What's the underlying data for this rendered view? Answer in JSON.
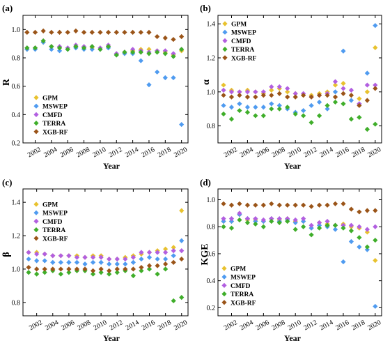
{
  "series_styles": [
    {
      "name": "GPM",
      "color": "#e8c22e"
    },
    {
      "name": "MSWEP",
      "color": "#4f9bf0"
    },
    {
      "name": "CMFD",
      "color": "#b25fe0"
    },
    {
      "name": "TERRA",
      "color": "#3fae2a"
    },
    {
      "name": "XGB-RF",
      "color": "#9a5418"
    }
  ],
  "chart_data": [
    {
      "panel": "(a)",
      "type": "scatter",
      "xlabel": "Year",
      "ylabel": "R",
      "xlim": [
        2000.5,
        2020.8
      ],
      "ylim": [
        0.2,
        1.1
      ],
      "yticks": [
        "0.2",
        "0.4",
        "0.6",
        "0.8",
        "1.0"
      ],
      "ytick_values": [
        0.2,
        0.4,
        0.6,
        0.8,
        1.0
      ],
      "xticks": [
        "2002",
        "2004",
        "2006",
        "2008",
        "2010",
        "2012",
        "2014",
        "2016",
        "2018",
        "2020"
      ],
      "xtick_values": [
        2002,
        2004,
        2006,
        2008,
        2010,
        2012,
        2014,
        2016,
        2018,
        2020
      ],
      "legend": "bottom-left",
      "x": [
        2001,
        2002,
        2003,
        2004,
        2005,
        2006,
        2007,
        2008,
        2009,
        2010,
        2011,
        2012,
        2013,
        2014,
        2015,
        2016,
        2017,
        2018,
        2019,
        2020
      ],
      "series": [
        {
          "name": "GPM",
          "values": [
            0.86,
            0.87,
            0.91,
            0.88,
            0.87,
            0.86,
            0.88,
            0.87,
            0.87,
            0.86,
            0.88,
            0.82,
            0.84,
            0.85,
            0.86,
            0.86,
            0.85,
            0.84,
            0.82,
            0.85
          ]
        },
        {
          "name": "MSWEP",
          "values": [
            0.86,
            0.86,
            0.91,
            0.86,
            0.85,
            0.86,
            0.87,
            0.86,
            0.86,
            0.86,
            0.87,
            0.82,
            0.83,
            0.83,
            0.78,
            0.61,
            0.7,
            0.66,
            0.66,
            0.33
          ]
        },
        {
          "name": "CMFD",
          "values": [
            0.87,
            0.87,
            0.92,
            0.88,
            0.88,
            0.87,
            0.89,
            0.88,
            0.88,
            0.87,
            0.89,
            0.83,
            0.84,
            0.86,
            0.85,
            0.84,
            0.85,
            0.85,
            0.83,
            0.86
          ]
        },
        {
          "name": "TERRA",
          "values": [
            0.87,
            0.87,
            0.92,
            0.88,
            0.87,
            0.86,
            0.88,
            0.87,
            0.88,
            0.86,
            0.88,
            0.82,
            0.84,
            0.84,
            0.84,
            0.83,
            0.84,
            0.83,
            0.81,
            0.86
          ]
        },
        {
          "name": "XGB-RF",
          "values": [
            0.98,
            0.98,
            0.99,
            0.98,
            0.98,
            0.98,
            0.99,
            0.98,
            0.98,
            0.98,
            0.98,
            0.98,
            0.98,
            0.98,
            0.98,
            0.98,
            0.95,
            0.94,
            0.93,
            0.95
          ]
        }
      ]
    },
    {
      "panel": "(b)",
      "type": "scatter",
      "xlabel": "Year",
      "ylabel": "α",
      "xlim": [
        2000.3,
        2020.8
      ],
      "ylim": [
        0.7,
        1.45
      ],
      "yticks": [
        "0.8",
        "1.0",
        "1.2",
        "1.4"
      ],
      "ytick_values": [
        0.8,
        1.0,
        1.2,
        1.4
      ],
      "xticks": [
        "2002",
        "2004",
        "2006",
        "2008",
        "2010",
        "2012",
        "2014",
        "2016",
        "2018",
        "2020"
      ],
      "xtick_values": [
        2002,
        2004,
        2006,
        2008,
        2010,
        2012,
        2014,
        2016,
        2018,
        2020
      ],
      "legend": "top-left",
      "x": [
        2001,
        2002,
        2003,
        2004,
        2005,
        2006,
        2007,
        2008,
        2009,
        2010,
        2011,
        2012,
        2013,
        2014,
        2015,
        2016,
        2017,
        2018,
        2019,
        2020
      ],
      "series": [
        {
          "name": "GPM",
          "values": [
            1.04,
            1.01,
            1.0,
            1.01,
            1.0,
            0.99,
            1.01,
            1.02,
            1.0,
            0.99,
            0.98,
            0.98,
            0.99,
            1.0,
            1.04,
            1.05,
            0.98,
            0.96,
            1.0,
            1.26
          ]
        },
        {
          "name": "MSWEP",
          "values": [
            0.92,
            0.91,
            0.93,
            0.91,
            0.91,
            0.91,
            0.93,
            0.92,
            0.9,
            0.88,
            0.89,
            0.92,
            0.94,
            0.9,
            1.0,
            1.24,
            0.95,
            0.93,
            1.11,
            1.39
          ]
        },
        {
          "name": "CMFD",
          "values": [
            1.01,
            1.0,
            1.0,
            1.0,
            1.0,
            1.0,
            1.03,
            1.03,
            1.02,
            0.99,
            0.99,
            0.97,
            0.98,
            0.99,
            1.06,
            1.02,
            1.01,
            0.93,
            1.04,
            1.04
          ]
        },
        {
          "name": "TERRA",
          "values": [
            0.87,
            0.84,
            0.89,
            0.88,
            0.86,
            0.86,
            0.9,
            0.9,
            0.91,
            0.87,
            0.86,
            0.82,
            0.86,
            0.92,
            0.94,
            0.93,
            0.84,
            0.85,
            0.78,
            0.81
          ]
        },
        {
          "name": "XGB-RF",
          "values": [
            0.98,
            0.97,
            0.98,
            0.97,
            0.97,
            0.98,
            0.98,
            0.99,
            0.97,
            0.97,
            0.98,
            0.97,
            0.98,
            0.98,
            0.97,
            0.99,
            0.98,
            0.92,
            0.95,
            1.02
          ]
        }
      ]
    },
    {
      "panel": "(c)",
      "type": "scatter",
      "xlabel": "Year",
      "ylabel": "β",
      "xlim": [
        2000.3,
        2020.8
      ],
      "ylim": [
        0.72,
        1.48
      ],
      "yticks": [
        "0.8",
        "1.0",
        "1.2",
        "1.4"
      ],
      "ytick_values": [
        0.8,
        1.0,
        1.2,
        1.4
      ],
      "xticks": [
        "2002",
        "2004",
        "2006",
        "2008",
        "2010",
        "2012",
        "2014",
        "2016",
        "2018",
        "2020"
      ],
      "xtick_values": [
        2002,
        2004,
        2006,
        2008,
        2010,
        2012,
        2014,
        2016,
        2018,
        2020
      ],
      "legend": "top-left",
      "x": [
        2001,
        2002,
        2003,
        2004,
        2005,
        2006,
        2007,
        2008,
        2009,
        2010,
        2011,
        2012,
        2013,
        2014,
        2015,
        2016,
        2017,
        2018,
        2019,
        2020
      ],
      "series": [
        {
          "name": "GPM",
          "values": [
            1.1,
            1.1,
            1.09,
            1.08,
            1.08,
            1.08,
            1.08,
            1.07,
            1.08,
            1.08,
            1.06,
            1.06,
            1.07,
            1.08,
            1.09,
            1.1,
            1.11,
            1.12,
            1.13,
            1.35
          ]
        },
        {
          "name": "MSWEP",
          "values": [
            1.06,
            1.05,
            1.05,
            1.04,
            1.04,
            1.04,
            1.04,
            1.03,
            1.04,
            1.04,
            1.03,
            1.03,
            1.03,
            1.04,
            1.06,
            1.07,
            1.06,
            1.06,
            1.08,
            1.17
          ]
        },
        {
          "name": "CMFD",
          "values": [
            1.1,
            1.09,
            1.09,
            1.08,
            1.08,
            1.08,
            1.07,
            1.07,
            1.07,
            1.07,
            1.06,
            1.06,
            1.06,
            1.07,
            1.1,
            1.1,
            1.1,
            1.1,
            1.11,
            1.11
          ]
        },
        {
          "name": "TERRA",
          "values": [
            0.98,
            0.97,
            0.98,
            0.99,
            0.97,
            0.98,
            0.99,
            0.99,
            0.97,
            0.98,
            0.97,
            0.98,
            0.99,
            0.96,
            0.99,
            1.0,
            0.97,
            1.0,
            0.81,
            0.83
          ]
        },
        {
          "name": "XGB-RF",
          "values": [
            1.01,
            1.0,
            1.0,
            1.0,
            1.0,
            1.0,
            1.0,
            1.0,
            0.99,
            1.0,
            0.99,
            1.0,
            1.0,
            1.0,
            1.01,
            1.02,
            1.02,
            1.03,
            1.04,
            1.06
          ]
        }
      ]
    },
    {
      "panel": "(d)",
      "type": "scatter",
      "xlabel": "Year",
      "ylabel": "KGE",
      "xlim": [
        2000.3,
        2020.8
      ],
      "ylim": [
        0.14,
        1.08
      ],
      "yticks": [
        "0.2",
        "0.4",
        "0.6",
        "0.8",
        "1.0"
      ],
      "ytick_values": [
        0.2,
        0.4,
        0.6,
        0.8,
        1.0
      ],
      "xticks": [
        "2002",
        "2004",
        "2006",
        "2008",
        "2010",
        "2012",
        "2014",
        "2016",
        "2018",
        "2020"
      ],
      "xtick_values": [
        2002,
        2004,
        2006,
        2008,
        2010,
        2012,
        2014,
        2016,
        2018,
        2020
      ],
      "legend": "bottom-left",
      "x": [
        2001,
        2002,
        2003,
        2004,
        2005,
        2006,
        2007,
        2008,
        2009,
        2010,
        2011,
        2012,
        2013,
        2014,
        2015,
        2016,
        2017,
        2018,
        2019,
        2020
      ],
      "series": [
        {
          "name": "GPM",
          "values": [
            0.84,
            0.84,
            0.89,
            0.85,
            0.85,
            0.84,
            0.86,
            0.85,
            0.86,
            0.84,
            0.84,
            0.79,
            0.83,
            0.82,
            0.81,
            0.82,
            0.8,
            0.79,
            0.76,
            0.55
          ]
        },
        {
          "name": "MSWEP",
          "values": [
            0.84,
            0.84,
            0.89,
            0.86,
            0.84,
            0.84,
            0.86,
            0.84,
            0.85,
            0.83,
            0.84,
            0.79,
            0.81,
            0.8,
            0.78,
            0.54,
            0.69,
            0.65,
            0.63,
            0.21
          ]
        },
        {
          "name": "CMFD",
          "values": [
            0.86,
            0.86,
            0.9,
            0.86,
            0.86,
            0.85,
            0.86,
            0.86,
            0.86,
            0.85,
            0.86,
            0.81,
            0.83,
            0.84,
            0.81,
            0.81,
            0.81,
            0.8,
            0.78,
            0.8
          ]
        },
        {
          "name": "TERRA",
          "values": [
            0.8,
            0.79,
            0.85,
            0.83,
            0.82,
            0.8,
            0.84,
            0.83,
            0.84,
            0.78,
            0.8,
            0.74,
            0.79,
            0.81,
            0.81,
            0.79,
            0.77,
            0.72,
            0.65,
            0.7
          ]
        },
        {
          "name": "XGB-RF",
          "values": [
            0.97,
            0.96,
            0.97,
            0.96,
            0.96,
            0.96,
            0.97,
            0.96,
            0.96,
            0.96,
            0.96,
            0.95,
            0.96,
            0.96,
            0.97,
            0.97,
            0.93,
            0.91,
            0.92,
            0.92
          ]
        }
      ]
    }
  ]
}
